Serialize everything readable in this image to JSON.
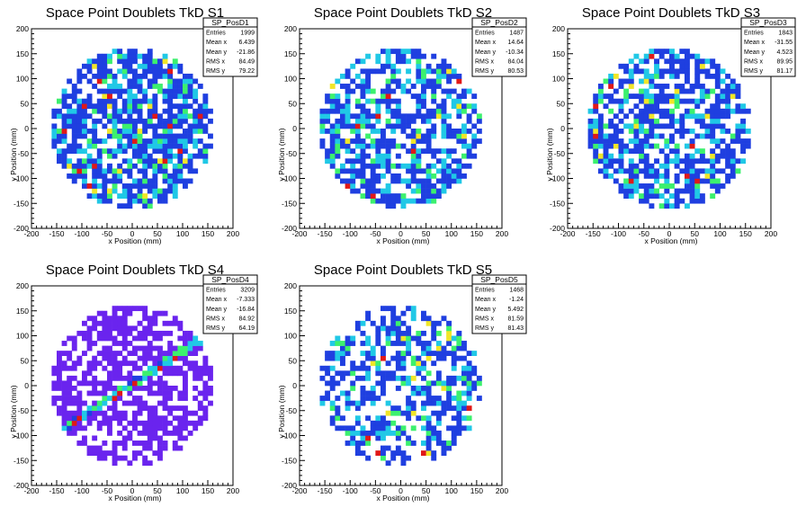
{
  "colors": {
    "blue": "#1f3fe0",
    "cyan": "#20c8e6",
    "green": "#3cf06e",
    "yellow": "#f0e628",
    "red": "#e01818",
    "purple": "#6a24ee",
    "frame": "#000000",
    "background": "#ffffff"
  },
  "chart_data": [
    {
      "type": "heatmap",
      "title": "Space Point Doublets TkD S1",
      "xlabel": "x Position (mm)",
      "ylabel": "y Position (mm)",
      "xlim": [
        -200,
        200
      ],
      "ylim": [
        -200,
        200
      ],
      "xticks": [
        "-200",
        "-150",
        "-100",
        "-50",
        "0",
        "50",
        "100",
        "150",
        "200"
      ],
      "yticks": [
        "-200",
        "-150",
        "-100",
        "-50",
        "0",
        "50",
        "100",
        "150",
        "200"
      ],
      "bin_size": 10,
      "disk_radius": 160,
      "fill_fraction": 0.72,
      "palette": "blue",
      "hot_band": false,
      "seed": 11,
      "stats": {
        "name": "SP_PosD1",
        "rows": [
          {
            "label": "Entries",
            "value": "1999"
          },
          {
            "label": "Mean x",
            "value": "6.439"
          },
          {
            "label": "Mean y",
            "value": "-21.86"
          },
          {
            "label": "RMS x",
            "value": "84.49"
          },
          {
            "label": "RMS y",
            "value": "79.22"
          }
        ]
      }
    },
    {
      "type": "heatmap",
      "title": "Space Point Doublets TkD S2",
      "xlabel": "x Position (mm)",
      "ylabel": "y Position (mm)",
      "xlim": [
        -200,
        200
      ],
      "ylim": [
        -200,
        200
      ],
      "xticks": [
        "-200",
        "-150",
        "-100",
        "-50",
        "0",
        "50",
        "100",
        "150",
        "200"
      ],
      "yticks": [
        "-200",
        "-150",
        "-100",
        "-50",
        "0",
        "50",
        "100",
        "150",
        "200"
      ],
      "bin_size": 10,
      "disk_radius": 160,
      "fill_fraction": 0.62,
      "palette": "blue",
      "hot_band": false,
      "seed": 23,
      "stats": {
        "name": "SP_PosD2",
        "rows": [
          {
            "label": "Entries",
            "value": "1487"
          },
          {
            "label": "Mean x",
            "value": "14.64"
          },
          {
            "label": "Mean y",
            "value": "-10.34"
          },
          {
            "label": "RMS x",
            "value": "84.04"
          },
          {
            "label": "RMS y",
            "value": "80.53"
          }
        ]
      }
    },
    {
      "type": "heatmap",
      "title": "Space Point Doublets TkD S3",
      "xlabel": "x Position (mm)",
      "ylabel": "y Position (mm)",
      "xlim": [
        -200,
        200
      ],
      "ylim": [
        -200,
        200
      ],
      "xticks": [
        "-200",
        "-150",
        "-100",
        "-50",
        "0",
        "50",
        "100",
        "150",
        "200"
      ],
      "yticks": [
        "-200",
        "-150",
        "-100",
        "-50",
        "0",
        "50",
        "100",
        "150",
        "200"
      ],
      "bin_size": 10,
      "disk_radius": 160,
      "fill_fraction": 0.66,
      "palette": "blue",
      "hot_band": false,
      "seed": 37,
      "stats": {
        "name": "SP_PosD3",
        "rows": [
          {
            "label": "Entries",
            "value": "1843"
          },
          {
            "label": "Mean x",
            "value": "-31.55"
          },
          {
            "label": "Mean y",
            "value": "4.523"
          },
          {
            "label": "RMS x",
            "value": "89.95"
          },
          {
            "label": "RMS y",
            "value": "81.17"
          }
        ]
      }
    },
    {
      "type": "heatmap",
      "title": "Space Point Doublets TkD S4",
      "xlabel": "x Position (mm)",
      "ylabel": "y Position (mm)",
      "xlim": [
        -200,
        200
      ],
      "ylim": [
        -200,
        200
      ],
      "xticks": [
        "-200",
        "-150",
        "-100",
        "-50",
        "0",
        "50",
        "100",
        "150",
        "200"
      ],
      "yticks": [
        "-200",
        "-150",
        "-100",
        "-50",
        "0",
        "50",
        "100",
        "150",
        "200"
      ],
      "bin_size": 10,
      "disk_radius": 160,
      "fill_fraction": 0.6,
      "palette": "purple",
      "hot_band": true,
      "seed": 53,
      "stats": {
        "name": "SP_PosD4",
        "rows": [
          {
            "label": "Entries",
            "value": "3209"
          },
          {
            "label": "Mean x",
            "value": "-7.333"
          },
          {
            "label": "Mean y",
            "value": "-16.84"
          },
          {
            "label": "RMS x",
            "value": "84.92"
          },
          {
            "label": "RMS y",
            "value": "64.19"
          }
        ]
      }
    },
    {
      "type": "heatmap",
      "title": "Space Point Doublets TkD S5",
      "xlabel": "x Position (mm)",
      "ylabel": "y Position (mm)",
      "xlim": [
        -200,
        200
      ],
      "ylim": [
        -200,
        200
      ],
      "xticks": [
        "-200",
        "-150",
        "-100",
        "-50",
        "0",
        "50",
        "100",
        "150",
        "200"
      ],
      "yticks": [
        "-200",
        "-150",
        "-100",
        "-50",
        "0",
        "50",
        "100",
        "150",
        "200"
      ],
      "bin_size": 10,
      "disk_radius": 160,
      "fill_fraction": 0.55,
      "palette": "blue",
      "hot_band": false,
      "seed": 71,
      "stats": {
        "name": "SP_PosD5",
        "rows": [
          {
            "label": "Entries",
            "value": "1468"
          },
          {
            "label": "Mean x",
            "value": "-1.24"
          },
          {
            "label": "Mean y",
            "value": "5.492"
          },
          {
            "label": "RMS x",
            "value": "81.59"
          },
          {
            "label": "RMS y",
            "value": "81.43"
          }
        ]
      }
    }
  ]
}
